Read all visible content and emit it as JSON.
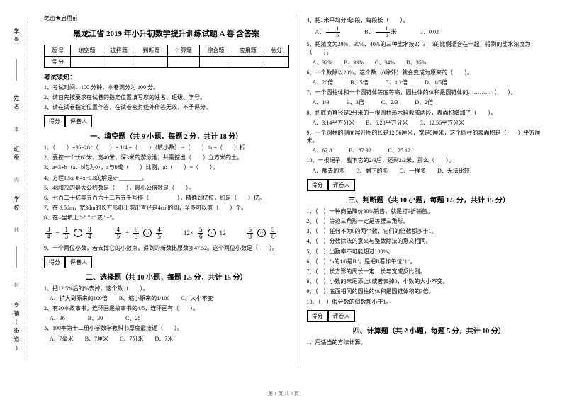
{
  "sidebar": {
    "labels": [
      "学号",
      "姓名",
      "班级",
      "学校",
      "乡镇(街道)"
    ],
    "marks": [
      "本",
      "内",
      "线",
      "封"
    ]
  },
  "meta": {
    "secret": "绝密★启用前",
    "title": "黑龙江省 2019 年小升初数学提升训练试题 A 卷  含答案"
  },
  "score": {
    "rowLabels": [
      "题  号",
      "得  分"
    ],
    "cols": [
      "填空题",
      "选择题",
      "判断题",
      "计算题",
      "综合题",
      "应用题",
      "总分"
    ]
  },
  "notice": {
    "head": "考试须知：",
    "items": [
      "1、考试时间：100 分钟，本卷满分为 100 分。",
      "2、请首先按要求在试卷的指定位置填写您的姓名、班级、学号。",
      "3、请在试卷指定位置作答，在试卷密封线外作答无效，不予评分。"
    ]
  },
  "box": {
    "c1": "得分",
    "c2": "评卷人"
  },
  "sec1": {
    "title": "一、填空题（共 9 小题，每题 2 分，共计 18 分）",
    "q": [
      "1、（　　）÷36=20：（　　）= 1/4 =（　　）（填小数） =（　　）% =（　　）折",
      "2、要挖一个长60米，宽40米，深3米的游泳池，共需挖出（　　）立方米的土。",
      "3、a=3+b（a、b均为0），a与b成（　　）比例，a:（　　）=（　　）。",
      "4、方程1.5x-0.4x=0.8的解是x=________。",
      "5、48和72的最大公约数是（　　），最小公倍数是（　　）。",
      "6、七百二十亿零五百六十三万五千写作（　　　　　），精确到亿位，约是（　　）亿。",
      "7、在长5dm，宽3dm的长方形纸上剪出直径是4cm的圆，至多可以剪（　　）个。",
      "8、在○里填上\">\" \"<\" 或 \"=\"。"
    ],
    "fracs": [
      {
        "a": [
          3,
          4
        ],
        "b": [
          1,
          3
        ],
        "r": [
          3,
          4
        ]
      },
      {
        "a": [
          4,
          5
        ],
        "b": [
          8,
          3
        ],
        "r": [
          4,
          5
        ]
      },
      {
        "l": "12×",
        "b": [
          5,
          6
        ],
        "rvar": "12"
      },
      {
        "a": [
          5,
          8
        ],
        "op": "−",
        "b": [
          5,
          8
        ]
      }
    ],
    "q9": "9、一个两位小数，若去掉它的小数点，得到的新数比原数多47.52。这个两位小数是（　　）。"
  },
  "sec2": {
    "title": "二、选择题（共 10 小题，每题 1.5 分，共计 15 分）",
    "q": [
      "1、把12.5%后的%去掉，这个数（　　）。",
      "　A、扩大到原来的100倍　　B、缩小原来的1/100　　C、大小不变",
      "2、有30本故事书，连环画是故事书的4/5，连环画有（　　）。",
      "　A、36　　　　B、30　　　　C、25",
      "3、100本第十二册小学数学教科书厚度最接近（　　）。",
      "　A、7毫米　　B、7厘米　　C、7分米　　D、7米"
    ]
  },
  "col2": {
    "pre": [
      "4、把1米平均分成5段，每段长（　　）。",
      "",
      "5、把浓度为20%、30%、40%的三种盐水按2：3：5的比例混合在一起，得到的盐水浓度为（　　）。",
      "　A、32%　　B、33%　　C、34%　　D、35%",
      "6、一个数除以20%，这个数（0除外）就会变成为原来的（　　）。",
      "　A、20倍　　　B、5倍　　　C、1.2倍　　　D、1/5倍",
      "7、一个圆柱体和一个圆锥体等底等高，圆柱体的体积是圆锥体的…………（　　）。",
      "　A、1/3　　　B、3倍　　　C、2/3　　　D、2倍",
      "8、把底面直径是2分米的一根圆柱形木料截成两段，表面积增加了（　　）。",
      "　A、3.14平方分米　　B、6.28平方分米　　C、12.56平方分米",
      "9、一个圆柱的侧面展开图的长是12.56厘米，宽是5厘米，这个圆柱的表面积是（　　）平方厘米。",
      "　A、62.8　　　B、87.92　　　C、25.12",
      "10、一根绳子，截下它的2/3后，还剩2/3米，那么（　　）。",
      "　A、截去的多　　B、剩下的多　　C、一样多　　D、无法比较"
    ],
    "choice4": {
      "A": [
        1,
        5
      ],
      "B_label": "1/5 米",
      "B": [
        1,
        5
      ],
      "C": "0.02"
    }
  },
  "sec3": {
    "title": "三、判断题（共 10 小题，每题 1.5 分，共计 15 分）",
    "q": [
      "1、（　）一种商品降价30%销售，就是打3折销售。",
      "2、（　）等边三角形一定是等腰三角形。",
      "3、（　）任何不为0的两个数，它们的倍数都多于1。",
      "4、（　）分数除法的意义与整数除法的意义相同。",
      "5、（　）出勤率不可能超过100%。",
      "6、（　）\"a的1/6是B\"，是把B看作单位\"1\"。",
      "7、（　）长方形的周长一定，长与宽成反比例。",
      "8、（　）小数的末尾添上0或者去掉0，小数的大小不变。",
      "9、（　）底面相同的圆柱的体积是圆锥体积的3倍。",
      "10、（　）假分数的倒数都小于1。"
    ]
  },
  "sec4": {
    "title": "四、计算题（共 2 小题，每题 5 分，共计 10 分）",
    "q": "1、用适当的方法计算。"
  },
  "foot": "第 1 页  共 4 页"
}
